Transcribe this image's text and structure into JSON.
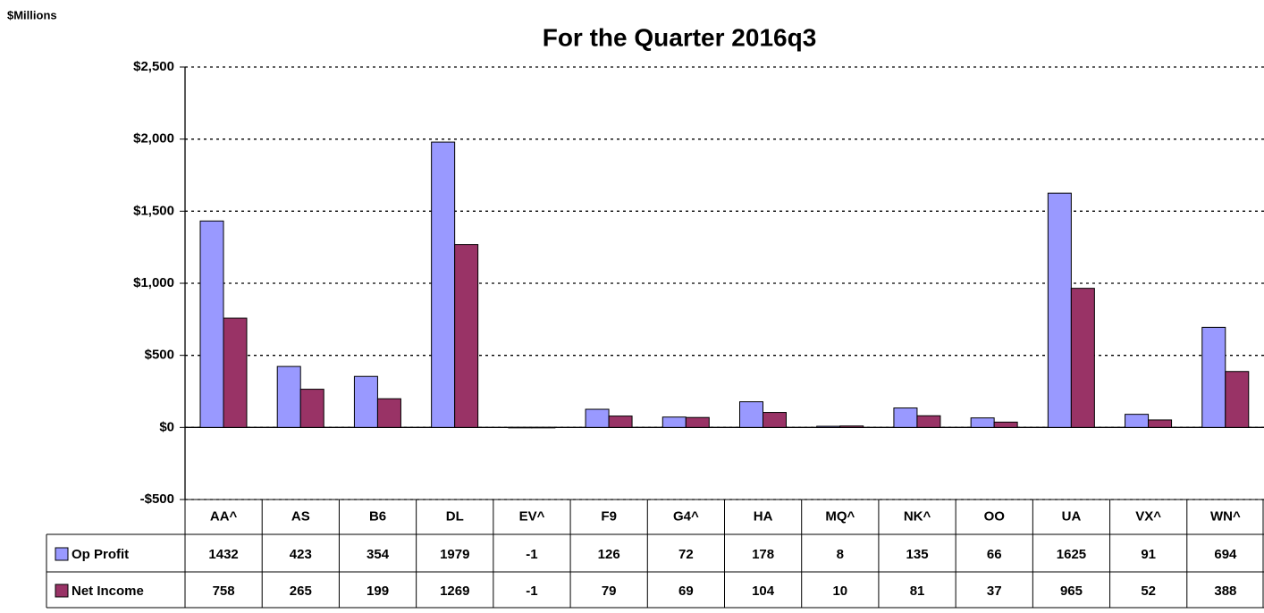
{
  "chart_data": {
    "type": "bar",
    "title": "For the Quarter 2016q3",
    "unit_label": "$Millions",
    "categories": [
      "AA^",
      "AS",
      "B6",
      "DL",
      "EV^",
      "F9",
      "G4^",
      "HA",
      "MQ^",
      "NK^",
      "OO",
      "UA",
      "VX^",
      "WN^"
    ],
    "series": [
      {
        "name": "Op Profit",
        "color": "#9999ff",
        "values": [
          1432,
          423,
          354,
          1979,
          -1,
          126,
          72,
          178,
          8,
          135,
          66,
          1625,
          91,
          694
        ]
      },
      {
        "name": "Net Income",
        "color": "#993366",
        "values": [
          758,
          265,
          199,
          1269,
          -1,
          79,
          69,
          104,
          10,
          81,
          37,
          965,
          52,
          388
        ]
      }
    ],
    "ylim": [
      -500,
      2500
    ],
    "yticks": [
      {
        "value": -500,
        "label": "-$500"
      },
      {
        "value": 0,
        "label": "$0"
      },
      {
        "value": 500,
        "label": "$500"
      },
      {
        "value": 1000,
        "label": "$1,000"
      },
      {
        "value": 1500,
        "label": "$1,500"
      },
      {
        "value": 2000,
        "label": "$2,000"
      },
      {
        "value": 2500,
        "label": "$2,500"
      }
    ],
    "grid": true,
    "data_table": true
  }
}
